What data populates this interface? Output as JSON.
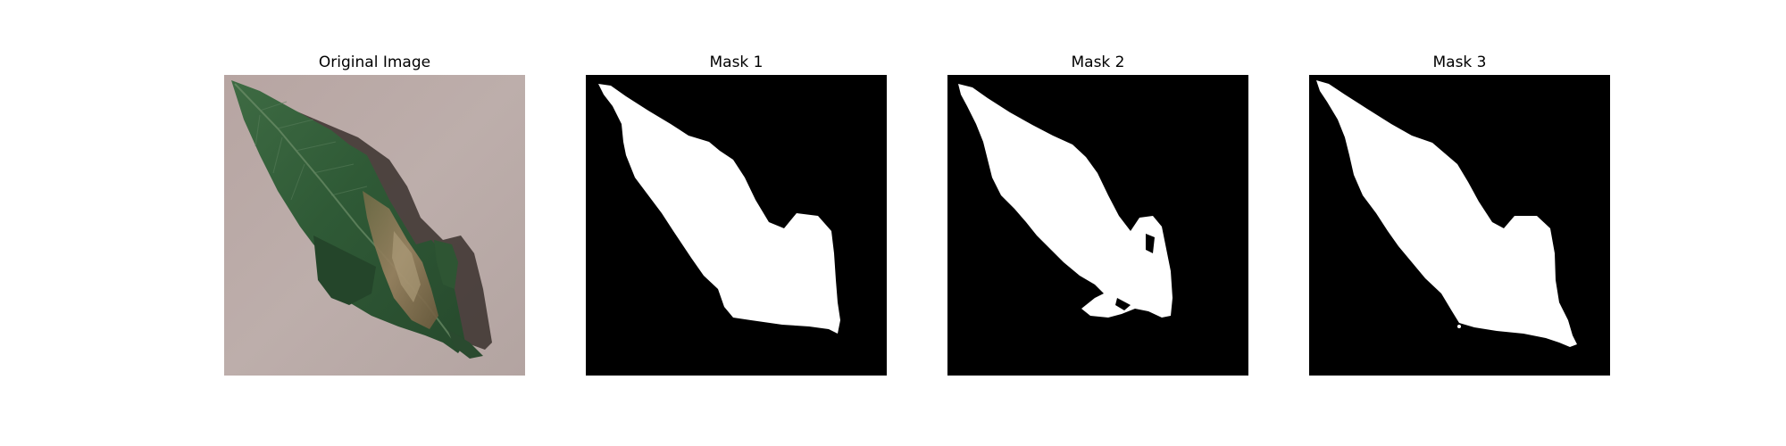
{
  "figure": {
    "panels": [
      {
        "title": "Original Image",
        "kind": "photo",
        "subject": "leaf-photo"
      },
      {
        "title": "Mask 1",
        "kind": "mask",
        "subject": "segmentation-mask"
      },
      {
        "title": "Mask 2",
        "kind": "mask",
        "subject": "segmentation-mask"
      },
      {
        "title": "Mask 3",
        "kind": "mask",
        "subject": "segmentation-mask"
      }
    ],
    "colors": {
      "background": "#ffffff",
      "mask_background": "#000000",
      "mask_foreground": "#ffffff",
      "leaf_green": "#2f5a36",
      "leaf_dark": "#1d3b23",
      "lesion_brown": "#8a7653",
      "paper": "#b8a9a6",
      "shadow": "#2a2422"
    }
  }
}
